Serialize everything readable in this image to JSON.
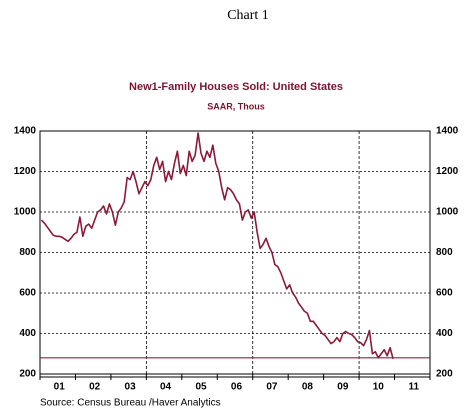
{
  "chart_data": {
    "type": "line",
    "header": "Chart 1",
    "title": "New1-Family Houses Sold: United States",
    "subtitle": "SAAR, Thous",
    "source": "Source:  Census Bureau /Haver Analytics",
    "color": "#8b1a3a",
    "reference_line": 280,
    "reference_color": "#9b1b3c",
    "ylim": [
      200,
      1400
    ],
    "yticks": [
      200,
      400,
      600,
      800,
      1000,
      1200,
      1400
    ],
    "grid": true,
    "categories": [
      null,
      null,
      null,
      null,
      null,
      null,
      "01",
      null,
      null,
      null,
      null,
      null,
      null,
      null,
      null,
      null,
      null,
      null,
      "02",
      null,
      null,
      null,
      null,
      null,
      null,
      null,
      null,
      null,
      null,
      null,
      "03",
      null,
      null,
      null,
      null,
      null,
      null,
      null,
      null,
      null,
      null,
      null,
      "04",
      null,
      null,
      null,
      null,
      null,
      null,
      null,
      null,
      null,
      null,
      null,
      "05",
      null,
      null,
      null,
      null,
      null,
      null,
      null,
      null,
      null,
      null,
      null,
      "06",
      null,
      null,
      null,
      null,
      null,
      null,
      null,
      null,
      null,
      null,
      null,
      "07",
      null,
      null,
      null,
      null,
      null,
      null,
      null,
      null,
      null,
      null,
      null,
      "08",
      null,
      null,
      null,
      null,
      null,
      null,
      null,
      null,
      null,
      null,
      null,
      "09",
      null,
      null,
      null,
      null,
      null,
      null,
      null,
      null,
      null,
      null,
      null,
      "10",
      null,
      null,
      null,
      null,
      null,
      null,
      null,
      null,
      null,
      null,
      null,
      "11",
      null,
      null,
      null,
      null,
      null
    ],
    "values": [
      960,
      945,
      925,
      905,
      885,
      880,
      880,
      875,
      865,
      855,
      870,
      890,
      900,
      975,
      880,
      930,
      940,
      920,
      960,
      1000,
      1010,
      1030,
      990,
      1040,
      1000,
      935,
      1000,
      1020,
      1050,
      1170,
      1160,
      1200,
      1150,
      1090,
      1120,
      1150,
      1130,
      1160,
      1230,
      1270,
      1210,
      1250,
      1150,
      1200,
      1160,
      1240,
      1300,
      1190,
      1230,
      1180,
      1300,
      1250,
      1280,
      1390,
      1290,
      1250,
      1300,
      1270,
      1330,
      1240,
      1200,
      1120,
      1060,
      1120,
      1110,
      1090,
      1060,
      1040,
      960,
      1000,
      1010,
      970,
      1000,
      900,
      820,
      840,
      870,
      830,
      800,
      740,
      730,
      700,
      660,
      620,
      640,
      600,
      580,
      550,
      530,
      510,
      500,
      460,
      460,
      440,
      420,
      400,
      390,
      370,
      350,
      360,
      380,
      360,
      400,
      410,
      400,
      395,
      380,
      360,
      355,
      340,
      370,
      415,
      300,
      310,
      280,
      300,
      320,
      290,
      330,
      275,
      null,
      null,
      null,
      null,
      null,
      null,
      null,
      null,
      null,
      null,
      null,
      null
    ]
  }
}
